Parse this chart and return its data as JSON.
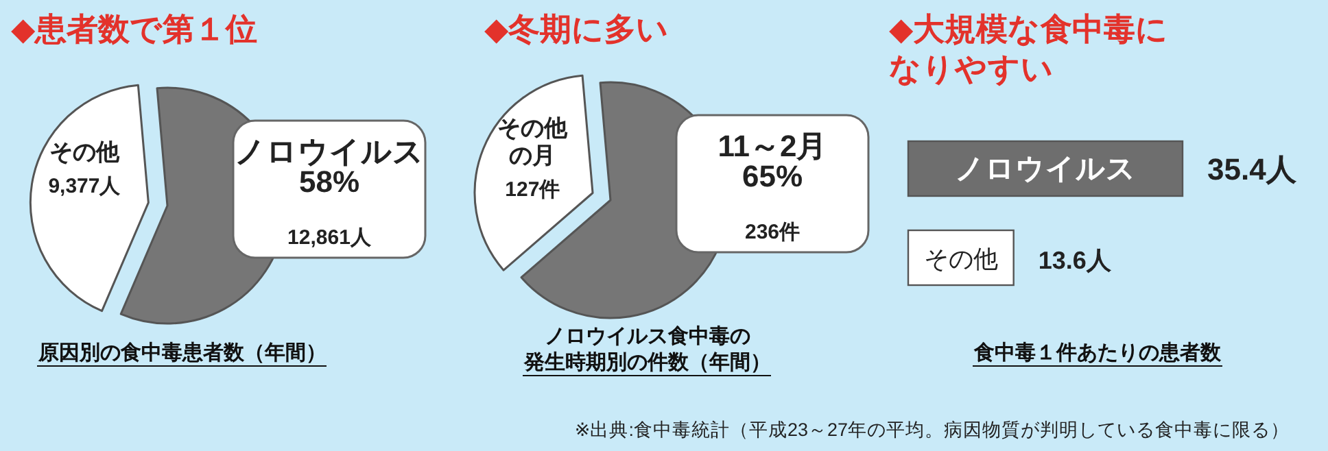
{
  "chart_data": [
    {
      "type": "pie",
      "title": "◆患者数で第１位",
      "xlabel": "原因別の食中毒患者数（年間）",
      "categories": [
        "ノロウイルス",
        "その他"
      ],
      "values": [
        12861,
        9377
      ],
      "value_labels": [
        "58%\n12,861人",
        "9,377人"
      ],
      "colors": [
        "#767676",
        "#ffffff"
      ]
    },
    {
      "type": "pie",
      "title": "◆冬期に多い",
      "xlabel": "ノロウイルス食中毒の発生時期別の件数（年間）",
      "categories": [
        "11～2月",
        "その他の月"
      ],
      "values": [
        236,
        127
      ],
      "value_labels": [
        "65%\n236件",
        "127件"
      ],
      "colors": [
        "#767676",
        "#ffffff"
      ]
    },
    {
      "type": "bar",
      "orientation": "horizontal",
      "title": "◆大規模な食中毒になりやすい",
      "xlabel": "食中毒１件あたりの患者数",
      "categories": [
        "ノロウイルス",
        "その他"
      ],
      "values": [
        35.4,
        13.6
      ],
      "value_labels": [
        "35.4人",
        "13.6人"
      ],
      "colors": [
        "#6e6e6e",
        "#ffffff"
      ],
      "annotations": [
        "※出典:食中毒統計（平成23～27年の平均。病因物質が判明している食中毒に限る）"
      ]
    }
  ]
}
